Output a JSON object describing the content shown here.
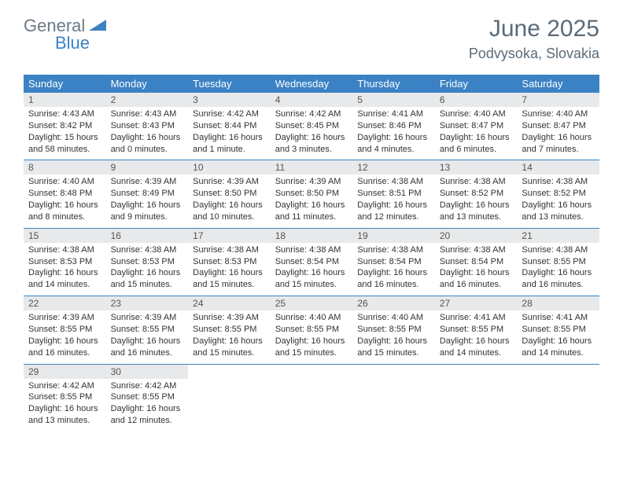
{
  "logo": {
    "text1": "General",
    "text2": "Blue"
  },
  "header": {
    "title": "June 2025",
    "location": "Podvysoka, Slovakia"
  },
  "colors": {
    "brand_blue": "#3b82c4",
    "logo_gray": "#6b7a86",
    "header_gray": "#5b6b78",
    "daynum_bg": "#e7e9eb",
    "text": "#333333",
    "white": "#ffffff"
  },
  "dow": [
    "Sunday",
    "Monday",
    "Tuesday",
    "Wednesday",
    "Thursday",
    "Friday",
    "Saturday"
  ],
  "weeks": [
    [
      {
        "n": "1",
        "sr": "Sunrise: 4:43 AM",
        "ss": "Sunset: 8:42 PM",
        "d1": "Daylight: 15 hours",
        "d2": "and 58 minutes."
      },
      {
        "n": "2",
        "sr": "Sunrise: 4:43 AM",
        "ss": "Sunset: 8:43 PM",
        "d1": "Daylight: 16 hours",
        "d2": "and 0 minutes."
      },
      {
        "n": "3",
        "sr": "Sunrise: 4:42 AM",
        "ss": "Sunset: 8:44 PM",
        "d1": "Daylight: 16 hours",
        "d2": "and 1 minute."
      },
      {
        "n": "4",
        "sr": "Sunrise: 4:42 AM",
        "ss": "Sunset: 8:45 PM",
        "d1": "Daylight: 16 hours",
        "d2": "and 3 minutes."
      },
      {
        "n": "5",
        "sr": "Sunrise: 4:41 AM",
        "ss": "Sunset: 8:46 PM",
        "d1": "Daylight: 16 hours",
        "d2": "and 4 minutes."
      },
      {
        "n": "6",
        "sr": "Sunrise: 4:40 AM",
        "ss": "Sunset: 8:47 PM",
        "d1": "Daylight: 16 hours",
        "d2": "and 6 minutes."
      },
      {
        "n": "7",
        "sr": "Sunrise: 4:40 AM",
        "ss": "Sunset: 8:47 PM",
        "d1": "Daylight: 16 hours",
        "d2": "and 7 minutes."
      }
    ],
    [
      {
        "n": "8",
        "sr": "Sunrise: 4:40 AM",
        "ss": "Sunset: 8:48 PM",
        "d1": "Daylight: 16 hours",
        "d2": "and 8 minutes."
      },
      {
        "n": "9",
        "sr": "Sunrise: 4:39 AM",
        "ss": "Sunset: 8:49 PM",
        "d1": "Daylight: 16 hours",
        "d2": "and 9 minutes."
      },
      {
        "n": "10",
        "sr": "Sunrise: 4:39 AM",
        "ss": "Sunset: 8:50 PM",
        "d1": "Daylight: 16 hours",
        "d2": "and 10 minutes."
      },
      {
        "n": "11",
        "sr": "Sunrise: 4:39 AM",
        "ss": "Sunset: 8:50 PM",
        "d1": "Daylight: 16 hours",
        "d2": "and 11 minutes."
      },
      {
        "n": "12",
        "sr": "Sunrise: 4:38 AM",
        "ss": "Sunset: 8:51 PM",
        "d1": "Daylight: 16 hours",
        "d2": "and 12 minutes."
      },
      {
        "n": "13",
        "sr": "Sunrise: 4:38 AM",
        "ss": "Sunset: 8:52 PM",
        "d1": "Daylight: 16 hours",
        "d2": "and 13 minutes."
      },
      {
        "n": "14",
        "sr": "Sunrise: 4:38 AM",
        "ss": "Sunset: 8:52 PM",
        "d1": "Daylight: 16 hours",
        "d2": "and 13 minutes."
      }
    ],
    [
      {
        "n": "15",
        "sr": "Sunrise: 4:38 AM",
        "ss": "Sunset: 8:53 PM",
        "d1": "Daylight: 16 hours",
        "d2": "and 14 minutes."
      },
      {
        "n": "16",
        "sr": "Sunrise: 4:38 AM",
        "ss": "Sunset: 8:53 PM",
        "d1": "Daylight: 16 hours",
        "d2": "and 15 minutes."
      },
      {
        "n": "17",
        "sr": "Sunrise: 4:38 AM",
        "ss": "Sunset: 8:53 PM",
        "d1": "Daylight: 16 hours",
        "d2": "and 15 minutes."
      },
      {
        "n": "18",
        "sr": "Sunrise: 4:38 AM",
        "ss": "Sunset: 8:54 PM",
        "d1": "Daylight: 16 hours",
        "d2": "and 15 minutes."
      },
      {
        "n": "19",
        "sr": "Sunrise: 4:38 AM",
        "ss": "Sunset: 8:54 PM",
        "d1": "Daylight: 16 hours",
        "d2": "and 16 minutes."
      },
      {
        "n": "20",
        "sr": "Sunrise: 4:38 AM",
        "ss": "Sunset: 8:54 PM",
        "d1": "Daylight: 16 hours",
        "d2": "and 16 minutes."
      },
      {
        "n": "21",
        "sr": "Sunrise: 4:38 AM",
        "ss": "Sunset: 8:55 PM",
        "d1": "Daylight: 16 hours",
        "d2": "and 16 minutes."
      }
    ],
    [
      {
        "n": "22",
        "sr": "Sunrise: 4:39 AM",
        "ss": "Sunset: 8:55 PM",
        "d1": "Daylight: 16 hours",
        "d2": "and 16 minutes."
      },
      {
        "n": "23",
        "sr": "Sunrise: 4:39 AM",
        "ss": "Sunset: 8:55 PM",
        "d1": "Daylight: 16 hours",
        "d2": "and 16 minutes."
      },
      {
        "n": "24",
        "sr": "Sunrise: 4:39 AM",
        "ss": "Sunset: 8:55 PM",
        "d1": "Daylight: 16 hours",
        "d2": "and 15 minutes."
      },
      {
        "n": "25",
        "sr": "Sunrise: 4:40 AM",
        "ss": "Sunset: 8:55 PM",
        "d1": "Daylight: 16 hours",
        "d2": "and 15 minutes."
      },
      {
        "n": "26",
        "sr": "Sunrise: 4:40 AM",
        "ss": "Sunset: 8:55 PM",
        "d1": "Daylight: 16 hours",
        "d2": "and 15 minutes."
      },
      {
        "n": "27",
        "sr": "Sunrise: 4:41 AM",
        "ss": "Sunset: 8:55 PM",
        "d1": "Daylight: 16 hours",
        "d2": "and 14 minutes."
      },
      {
        "n": "28",
        "sr": "Sunrise: 4:41 AM",
        "ss": "Sunset: 8:55 PM",
        "d1": "Daylight: 16 hours",
        "d2": "and 14 minutes."
      }
    ],
    [
      {
        "n": "29",
        "sr": "Sunrise: 4:42 AM",
        "ss": "Sunset: 8:55 PM",
        "d1": "Daylight: 16 hours",
        "d2": "and 13 minutes."
      },
      {
        "n": "30",
        "sr": "Sunrise: 4:42 AM",
        "ss": "Sunset: 8:55 PM",
        "d1": "Daylight: 16 hours",
        "d2": "and 12 minutes."
      },
      null,
      null,
      null,
      null,
      null
    ]
  ]
}
